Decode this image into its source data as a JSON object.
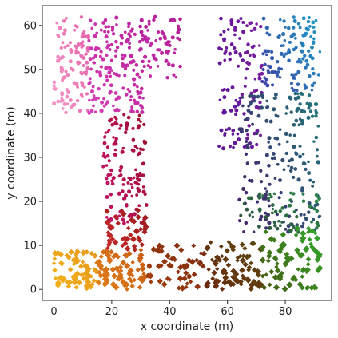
{
  "chart_data": {
    "type": "scatter",
    "title": "",
    "xlabel": "x coordinate (m)",
    "ylabel": "y coordinate (m)",
    "xlim": [
      -4,
      96
    ],
    "ylim": [
      -2.5,
      64.5
    ],
    "xticks": [
      0,
      20,
      40,
      60,
      80
    ],
    "yticks": [
      0,
      10,
      20,
      30,
      40,
      50,
      60
    ],
    "grid": false,
    "legend": "none",
    "series": [
      {
        "marker": "circle",
        "regions": [
          {
            "x": [
              0,
              12
            ],
            "y": [
              40,
              62
            ],
            "count": 110,
            "color_from": "#f59ac7",
            "color_to": "#e55fa8"
          },
          {
            "x": [
              12,
              32
            ],
            "y": [
              40,
              62
            ],
            "count": 170,
            "color_from": "#d63fb8",
            "color_to": "#b81f9a"
          },
          {
            "x": [
              32,
              44
            ],
            "y": [
              48,
              62
            ],
            "count": 55,
            "color_from": "#c62cae",
            "color_to": "#b0208f"
          },
          {
            "x": [
              17,
              32
            ],
            "y": [
              15,
              40
            ],
            "count": 130,
            "color_from": "#c8136d",
            "color_to": "#9c0f2e"
          },
          {
            "x": [
              57,
              72
            ],
            "y": [
              32,
              62
            ],
            "count": 120,
            "color_from": "#5b1699",
            "color_to": "#7a1f9e"
          },
          {
            "x": [
              72,
              92
            ],
            "y": [
              45,
              62
            ],
            "count": 120,
            "color_from": "#3d3fa5",
            "color_to": "#1f9fc4"
          },
          {
            "x": [
              64,
              92
            ],
            "y": [
              13,
              45
            ],
            "count": 200,
            "color_from": "#4a1a6a",
            "color_to": "#1e7a7a"
          },
          {
            "x": [
              64,
              92
            ],
            "y": [
              13,
              22
            ],
            "count": 60,
            "color_from": "#2b4a3a",
            "color_to": "#2f8a4a"
          }
        ]
      },
      {
        "marker": "diamond",
        "regions": [
          {
            "x": [
              0,
              15
            ],
            "y": [
              0,
              9
            ],
            "count": 70,
            "color_from": "#f3b21a",
            "color_to": "#e8961a"
          },
          {
            "x": [
              15,
              32
            ],
            "y": [
              0,
              9
            ],
            "count": 80,
            "color_from": "#e2801a",
            "color_to": "#c75a12"
          },
          {
            "x": [
              17,
              32
            ],
            "y": [
              9,
              18
            ],
            "count": 45,
            "color_from": "#c8282a",
            "color_to": "#9c1c1c"
          },
          {
            "x": [
              32,
              52
            ],
            "y": [
              0,
              10
            ],
            "count": 55,
            "color_from": "#a5400e",
            "color_to": "#7a2a10"
          },
          {
            "x": [
              52,
              72
            ],
            "y": [
              0,
              11
            ],
            "count": 80,
            "color_from": "#6a2810",
            "color_to": "#5a4a10"
          },
          {
            "x": [
              72,
              92
            ],
            "y": [
              0,
              14
            ],
            "count": 90,
            "color_from": "#4a5a14",
            "color_to": "#2fa82a"
          }
        ]
      }
    ]
  }
}
